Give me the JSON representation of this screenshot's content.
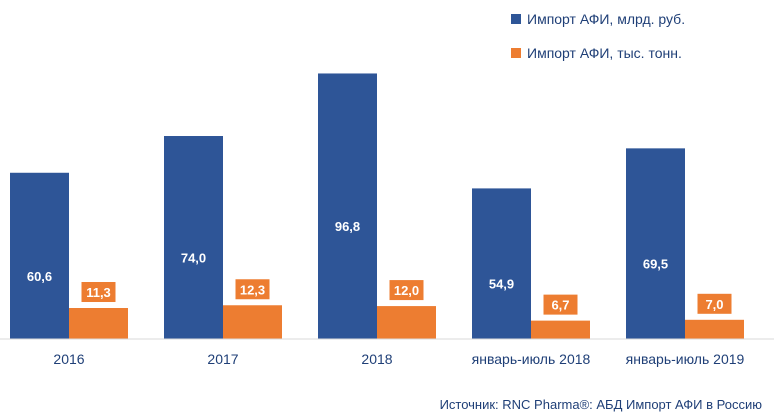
{
  "chart_data": {
    "type": "bar",
    "categories": [
      "2016",
      "2017",
      "2018",
      "январь-июль 2018",
      "январь-июль 2019"
    ],
    "series": [
      {
        "name": "Импорт АФИ, млрд. руб.",
        "values": [
          60.6,
          74.0,
          96.8,
          54.9,
          69.5
        ],
        "labels": [
          "60,6",
          "74,0",
          "96,8",
          "54,9",
          "69,5"
        ],
        "color": "#2e5597"
      },
      {
        "name": "Импорт АФИ, тыс. тонн.",
        "values": [
          11.3,
          12.3,
          12.0,
          6.7,
          7.0
        ],
        "labels": [
          "11,3",
          "12,3",
          "12,0",
          "6,7",
          "7,0"
        ],
        "color": "#ed7d31"
      }
    ],
    "ylim": [
      0,
      109
    ],
    "grid": false,
    "legend": "top-right",
    "title": "",
    "xlabel": "",
    "ylabel": ""
  },
  "source": "Источник: RNC Pharma®: АБД Импорт АФИ в Россию"
}
